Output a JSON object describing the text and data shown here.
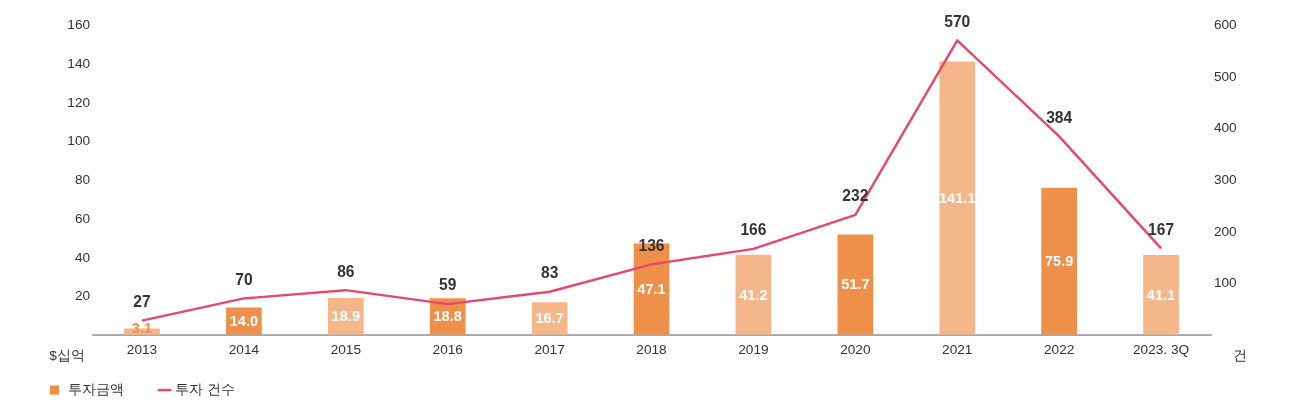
{
  "chart_data": {
    "type": "bar",
    "categories": [
      "2013",
      "2014",
      "2015",
      "2016",
      "2017",
      "2018",
      "2019",
      "2020",
      "2021",
      "2022",
      "2023. 3Q"
    ],
    "ylabel": "$십억",
    "y2label": "건",
    "series": [
      {
        "name": "투자금액",
        "color": "#ee8f4a",
        "value_labels": [
          "3.1",
          "14.0",
          "18.9",
          "18.8",
          "16.7",
          "47.1",
          "41.2",
          "51.7",
          "141.1",
          "75.9",
          "41.1"
        ],
        "colors": [
          "#f5b78a",
          "#ee8f4a",
          "#f5b78a",
          "#ee8f4a",
          "#f5b78a",
          "#ee8f4a",
          "#f5b78a",
          "#ee8f4a",
          "#f5b78a",
          "#ee8f4a",
          "#f5b78a"
        ],
        "values": [
          3.1,
          14.0,
          18.9,
          18.8,
          16.7,
          47.1,
          41.2,
          51.7,
          141.1,
          75.9,
          41.1
        ]
      },
      {
        "name": "투자 건수",
        "type": "line",
        "axis": "y2",
        "color": "#e8476e",
        "values": [
          27,
          70,
          86,
          59,
          83,
          136,
          166,
          232,
          570,
          384,
          167
        ]
      }
    ],
    "ylim": [
      0,
      160
    ],
    "yticks": [
      20,
      40,
      60,
      80,
      100,
      120,
      140,
      160
    ],
    "y2lim": [
      0,
      600
    ],
    "y2ticks": [
      100,
      200,
      300,
      400,
      500,
      600
    ],
    "data_labels": true,
    "grid": false,
    "legend": "bottom left",
    "marker": "none",
    "line_style": "solid"
  }
}
